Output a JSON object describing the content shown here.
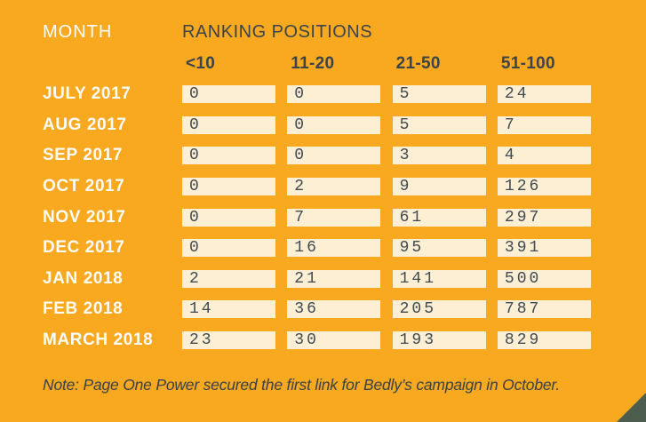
{
  "header": {
    "month_label": "MONTH",
    "ranking_label": "RANKING POSITIONS"
  },
  "chart_data": {
    "type": "table",
    "title": "RANKING POSITIONS",
    "row_header": "MONTH",
    "columns": [
      "<10",
      "11-20",
      "21-50",
      "51-100"
    ],
    "categories": [
      "JULY 2017",
      "AUG 2017",
      "SEP 2017",
      "OCT 2017",
      "NOV 2017",
      "DEC 2017",
      "JAN 2018",
      "FEB 2018",
      "MARCH 2018"
    ],
    "series": [
      {
        "name": "<10",
        "values": [
          0,
          0,
          0,
          0,
          0,
          0,
          2,
          14,
          23
        ]
      },
      {
        "name": "11-20",
        "values": [
          0,
          0,
          0,
          2,
          7,
          16,
          21,
          36,
          30
        ]
      },
      {
        "name": "21-50",
        "values": [
          5,
          5,
          3,
          9,
          61,
          95,
          141,
          205,
          193
        ]
      },
      {
        "name": "51-100",
        "values": [
          24,
          7,
          4,
          126,
          297,
          391,
          500,
          787,
          829
        ]
      }
    ],
    "note": "Note: Page One Power secured the first link for Bedly’s campaign in October."
  },
  "colors": {
    "background": "#F9A91F",
    "cell_background": "#FCEFD4",
    "dark_text": "#3C434B",
    "light_text": "#FDFDFA",
    "corner_triangle": "#4D5E4F"
  }
}
